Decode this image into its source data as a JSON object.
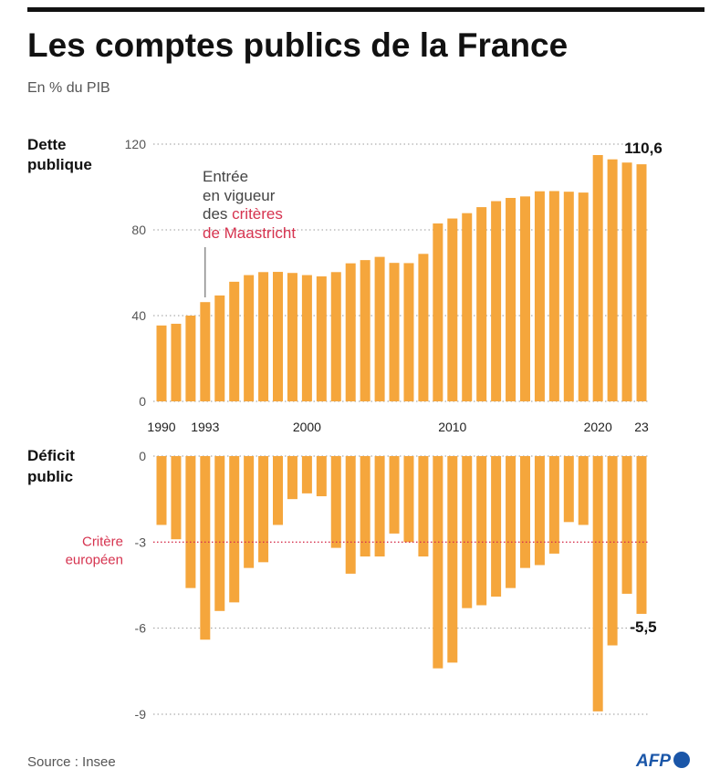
{
  "title": "Les comptes publics de la France",
  "subtitle": "En % du PIB",
  "source": "Source : Insee",
  "logo": "AFP",
  "colors": {
    "bar": "#f5a63c",
    "accent": "#d6334f",
    "text": "#222222",
    "grid": "#999999"
  },
  "chart_data": [
    {
      "type": "bar",
      "title": "Dette publique",
      "x": [
        1990,
        1991,
        1992,
        1993,
        1994,
        1995,
        1996,
        1997,
        1998,
        1999,
        2000,
        2001,
        2002,
        2003,
        2004,
        2005,
        2006,
        2007,
        2008,
        2009,
        2010,
        2011,
        2012,
        2013,
        2014,
        2015,
        2016,
        2017,
        2018,
        2019,
        2020,
        2021,
        2022,
        2023
      ],
      "values": [
        35.4,
        36.2,
        40.0,
        46.3,
        49.4,
        55.8,
        58.9,
        60.3,
        60.4,
        59.9,
        58.9,
        58.3,
        60.3,
        64.4,
        65.9,
        67.4,
        64.6,
        64.5,
        68.8,
        83.0,
        85.3,
        87.8,
        90.6,
        93.4,
        94.9,
        95.6,
        98.0,
        98.1,
        97.8,
        97.4,
        114.9,
        112.9,
        111.4,
        110.6
      ],
      "yticks": [
        "0",
        "40",
        "80",
        "120"
      ],
      "ytick_values": [
        0,
        40,
        80,
        120
      ],
      "ylim": [
        0,
        120
      ],
      "xtick_labels": [
        "1990",
        "1993",
        "2000",
        "2010",
        "2020",
        "23"
      ],
      "xtick_years": [
        1990,
        1993,
        2000,
        2010,
        2020,
        2023
      ],
      "value_label": "110,6",
      "annotation": {
        "year": 1993,
        "line1": "Entrée",
        "line2": "en vigueur",
        "line3_a": "des ",
        "line3_b": "critères",
        "line4": "de Maastricht"
      }
    },
    {
      "type": "bar",
      "title": "Déficit public",
      "x": [
        1990,
        1991,
        1992,
        1993,
        1994,
        1995,
        1996,
        1997,
        1998,
        1999,
        2000,
        2001,
        2002,
        2003,
        2004,
        2005,
        2006,
        2007,
        2008,
        2009,
        2010,
        2011,
        2012,
        2013,
        2014,
        2015,
        2016,
        2017,
        2018,
        2019,
        2020,
        2021,
        2022,
        2023
      ],
      "values": [
        -2.4,
        -2.9,
        -4.6,
        -6.4,
        -5.4,
        -5.1,
        -3.9,
        -3.7,
        -2.4,
        -1.5,
        -1.3,
        -1.4,
        -3.2,
        -4.1,
        -3.5,
        -3.5,
        -2.7,
        -3.0,
        -3.5,
        -7.4,
        -7.2,
        -5.3,
        -5.2,
        -4.9,
        -4.6,
        -3.9,
        -3.8,
        -3.4,
        -2.3,
        -2.4,
        -8.9,
        -6.6,
        -4.8,
        -5.5
      ],
      "yticks": [
        "0",
        "-3",
        "-6",
        "-9"
      ],
      "ytick_values": [
        0,
        -3,
        -6,
        -9
      ],
      "ylim": [
        -9,
        0
      ],
      "value_label": "-5,5",
      "reference": {
        "value": -3,
        "label_line1": "Critère",
        "label_line2": "européen"
      }
    }
  ]
}
